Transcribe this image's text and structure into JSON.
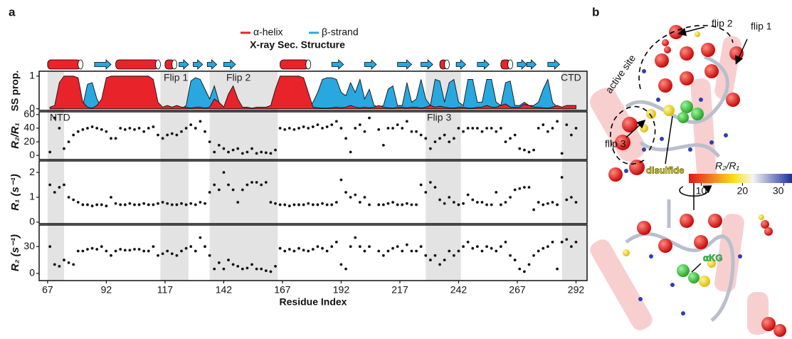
{
  "panel_labels": [
    "a",
    "b"
  ],
  "chart_data": [
    {
      "type": "sec_structure",
      "title": "X-ray Sec. Structure",
      "series": [
        {
          "name": "α-helix",
          "color": "#e8242a"
        },
        {
          "name": "β-strand",
          "color": "#29a8e0"
        }
      ],
      "elements": [
        {
          "kind": "helix",
          "start": 67,
          "end": 81
        },
        {
          "kind": "strand",
          "start": 87,
          "end": 94
        },
        {
          "kind": "helix",
          "start": 96,
          "end": 114
        },
        {
          "kind": "helix",
          "start": 117,
          "end": 121
        },
        {
          "kind": "strand",
          "start": 123,
          "end": 127
        },
        {
          "kind": "strand",
          "start": 129,
          "end": 133
        },
        {
          "kind": "strand",
          "start": 135,
          "end": 139
        },
        {
          "kind": "strand",
          "start": 142,
          "end": 147
        },
        {
          "kind": "helix",
          "start": 166,
          "end": 178
        },
        {
          "kind": "strand",
          "start": 188,
          "end": 193
        },
        {
          "kind": "strand",
          "start": 202,
          "end": 207
        },
        {
          "kind": "strand",
          "start": 216,
          "end": 222
        },
        {
          "kind": "strand",
          "start": 226,
          "end": 231
        },
        {
          "kind": "helix",
          "start": 234,
          "end": 237
        },
        {
          "kind": "strand",
          "start": 241,
          "end": 245
        },
        {
          "kind": "strand",
          "start": 250,
          "end": 255
        },
        {
          "kind": "helix",
          "start": 260,
          "end": 264
        },
        {
          "kind": "strand",
          "start": 267,
          "end": 271
        },
        {
          "kind": "strand",
          "start": 271,
          "end": 275
        },
        {
          "kind": "strand",
          "start": 280,
          "end": 285
        }
      ]
    },
    {
      "type": "area",
      "ylabel": "SS prop.",
      "ylim": [
        -0.05,
        1.15
      ],
      "yticks": [
        0,
        1
      ],
      "annotations": [
        "Flip 1",
        "Flip 2",
        "CTD"
      ],
      "x": [
        68,
        70,
        72,
        74,
        76,
        78,
        80,
        82,
        84,
        86,
        88,
        90,
        92,
        94,
        96,
        98,
        100,
        102,
        104,
        106,
        108,
        110,
        112,
        114,
        116,
        118,
        120,
        122,
        124,
        126,
        128,
        130,
        132,
        134,
        136,
        138,
        140,
        142,
        144,
        146,
        148,
        150,
        152,
        154,
        156,
        158,
        160,
        162,
        164,
        166,
        168,
        170,
        172,
        174,
        176,
        178,
        180,
        182,
        184,
        186,
        188,
        190,
        192,
        194,
        196,
        198,
        200,
        202,
        204,
        206,
        208,
        210,
        212,
        214,
        216,
        218,
        220,
        222,
        224,
        226,
        228,
        230,
        232,
        234,
        236,
        238,
        240,
        242,
        244,
        246,
        248,
        250,
        252,
        254,
        256,
        258,
        260,
        262,
        264,
        266,
        268,
        270,
        272,
        274,
        276,
        278,
        280,
        282,
        284,
        286,
        288,
        290,
        292
      ],
      "series": [
        {
          "color": "#29a8e0",
          "values": [
            0,
            0,
            0,
            0,
            0,
            0,
            0,
            0.1,
            0.75,
            0.8,
            0.3,
            0.05,
            0,
            0,
            0,
            0,
            0,
            0,
            0,
            0,
            0,
            0,
            0,
            0,
            0,
            0,
            0,
            0,
            0,
            0.1,
            0.85,
            0.95,
            0.9,
            0.6,
            0.3,
            0.7,
            0.2,
            0.05,
            0,
            0,
            0.05,
            0,
            0,
            0,
            0,
            0,
            0,
            0,
            0,
            0,
            0,
            0,
            0,
            0,
            0,
            0.05,
            0.2,
            0.5,
            0.9,
            0.95,
            0.95,
            0.9,
            0.5,
            0.4,
            0.8,
            0.5,
            0.9,
            0.3,
            0.6,
            0.1,
            0.05,
            0.1,
            0.6,
            0.7,
            0.1,
            0.1,
            0.8,
            0.2,
            0.3,
            0.9,
            0.3,
            0.1,
            0.9,
            0.85,
            0.2,
            0.8,
            0.9,
            0.2,
            0.1,
            0.9,
            0.9,
            0.2,
            0.2,
            0.9,
            0.9,
            0.2,
            0.1,
            0.8,
            0.85,
            0.1,
            0.1,
            0.2,
            0.1,
            0.1,
            0.2,
            0.6,
            0.9,
            0.2,
            0.05,
            0,
            0.02,
            0.02,
            0
          ]
        },
        {
          "color": "#e8242a",
          "values": [
            0.05,
            0.1,
            0.8,
            1,
            1,
            1,
            0.95,
            0.2,
            0.05,
            0.02,
            0.1,
            0.3,
            0.95,
            1,
            1,
            1,
            1,
            1,
            1,
            1,
            1,
            1,
            0.9,
            0.2,
            0.05,
            0.1,
            0.05,
            0.1,
            0.05,
            0.05,
            0.02,
            0.05,
            0.05,
            0.02,
            0.05,
            0.3,
            0.2,
            0.05,
            0.45,
            0.7,
            0.3,
            0.05,
            0.05,
            0.02,
            0.05,
            0.05,
            0.05,
            0.1,
            0.6,
            1,
            1,
            1,
            1,
            1,
            0.95,
            0.5,
            0.05,
            0.03,
            0.02,
            0.02,
            0.03,
            0.05,
            0.03,
            0.05,
            0.1,
            0.05,
            0.03,
            0.05,
            0.03,
            0.05,
            0.1,
            0.05,
            0.03,
            0.02,
            0.05,
            0.05,
            0.03,
            0.05,
            0.05,
            0.02,
            0.05,
            0.1,
            0.05,
            0.08,
            0.05,
            0.03,
            0.02,
            0.05,
            0.05,
            0.02,
            0.02,
            0.05,
            0.05,
            0.1,
            0.05,
            0.05,
            0.1,
            0.15,
            0.05,
            0.05,
            0.05,
            0.15,
            0.1,
            0.05,
            0.05,
            0.03,
            0.02,
            0.05,
            0.1,
            0.05,
            0.1,
            0.1,
            0.1
          ]
        }
      ]
    },
    {
      "type": "scatter",
      "ylabel": "R₂/R₁",
      "ylim": [
        -6,
        64
      ],
      "yticks": [
        0,
        20,
        40,
        60
      ],
      "annotations": [
        "NTD",
        "Flip 3"
      ],
      "x": [
        68,
        70,
        72,
        74,
        76,
        78,
        80,
        82,
        84,
        86,
        88,
        90,
        92,
        94,
        96,
        98,
        100,
        102,
        104,
        106,
        108,
        110,
        112,
        114,
        116,
        118,
        120,
        122,
        124,
        126,
        128,
        130,
        132,
        134,
        136,
        138,
        140,
        142,
        144,
        146,
        148,
        150,
        152,
        154,
        156,
        158,
        160,
        162,
        164,
        166,
        168,
        170,
        172,
        174,
        176,
        178,
        180,
        182,
        184,
        186,
        188,
        190,
        192,
        194,
        196,
        198,
        200,
        202,
        204,
        206,
        208,
        210,
        212,
        214,
        216,
        218,
        220,
        222,
        224,
        226,
        228,
        230,
        232,
        234,
        236,
        238,
        240,
        242,
        244,
        246,
        248,
        250,
        252,
        254,
        256,
        258,
        260,
        262,
        264,
        266,
        268,
        270,
        272,
        274,
        276,
        278,
        280,
        282,
        284,
        286,
        288,
        290,
        292
      ],
      "values": [
        5,
        55,
        40,
        10,
        20,
        30,
        35,
        38,
        40,
        42,
        40,
        38,
        35,
        25,
        25,
        40,
        38,
        40,
        38,
        40,
        35,
        40,
        42,
        30,
        25,
        30,
        32,
        30,
        35,
        40,
        45,
        40,
        50,
        35,
        20,
        5,
        15,
        10,
        5,
        8,
        10,
        3,
        5,
        10,
        3,
        5,
        4,
        3,
        8,
        40,
        38,
        40,
        38,
        40,
        42,
        40,
        42,
        45,
        40,
        42,
        45,
        50,
        40,
        25,
        5,
        40,
        45,
        35,
        55,
        null,
        38,
        15,
        40,
        40,
        45,
        40,
        50,
        35,
        35,
        30,
        25,
        10,
        20,
        25,
        30,
        20,
        25,
        40,
        35,
        40,
        40,
        40,
        35,
        40,
        40,
        35,
        40,
        20,
        25,
        30,
        10,
        8,
        5,
        8,
        40,
        45,
        35,
        40,
        50,
        3,
        45,
        30,
        40
      ]
    },
    {
      "type": "scatter",
      "ylabel": "R₁ (s⁻¹)",
      "ylim": [
        -0.06,
        2.46
      ],
      "yticks": [
        0,
        1,
        2
      ],
      "x": [
        68,
        70,
        72,
        74,
        76,
        78,
        80,
        82,
        84,
        86,
        88,
        90,
        92,
        94,
        96,
        98,
        100,
        102,
        104,
        106,
        108,
        110,
        112,
        114,
        116,
        118,
        120,
        122,
        124,
        126,
        128,
        130,
        132,
        134,
        136,
        138,
        140,
        142,
        144,
        146,
        148,
        150,
        152,
        154,
        156,
        158,
        160,
        162,
        164,
        166,
        168,
        170,
        172,
        174,
        176,
        178,
        180,
        182,
        184,
        186,
        188,
        190,
        192,
        194,
        196,
        198,
        200,
        202,
        204,
        206,
        208,
        210,
        212,
        214,
        216,
        218,
        220,
        222,
        224,
        226,
        228,
        230,
        232,
        234,
        236,
        238,
        240,
        242,
        244,
        246,
        248,
        250,
        252,
        254,
        256,
        258,
        260,
        262,
        264,
        266,
        268,
        270,
        272,
        274,
        276,
        278,
        280,
        282,
        284,
        286,
        288,
        290,
        292
      ],
      "values": [
        1.5,
        1.2,
        1.4,
        1.5,
        1.0,
        0.9,
        0.8,
        0.7,
        0.7,
        0.65,
        0.7,
        0.7,
        0.65,
        1.0,
        0.75,
        0.7,
        0.7,
        0.75,
        0.7,
        0.7,
        0.75,
        0.7,
        0.7,
        0.75,
        0.8,
        0.75,
        0.7,
        0.7,
        0.75,
        0.7,
        0.75,
        0.7,
        0.8,
        0.75,
        1.2,
        1.5,
        1.3,
        2.0,
        1.5,
        1.3,
        0.8,
        1.3,
        1.5,
        1.6,
        1.6,
        1.5,
        1.6,
        0.8,
        0.75,
        0.7,
        0.7,
        0.65,
        0.7,
        0.7,
        0.7,
        0.75,
        0.7,
        0.7,
        0.75,
        0.7,
        0.7,
        0.8,
        1.7,
        1.2,
        1.0,
        1.1,
        0.8,
        1.0,
        0.7,
        null,
        0.7,
        0.7,
        0.75,
        0.8,
        0.7,
        0.7,
        0.75,
        0.7,
        0.7,
        1.5,
        1.2,
        1.6,
        1.4,
        0.9,
        0.75,
        1.0,
        0.8,
        0.7,
        0.75,
        1.1,
        0.9,
        0.8,
        0.8,
        0.7,
        0.7,
        1.2,
        0.7,
        0.8,
        1.0,
        1.3,
        1.35,
        1.4,
        1.4,
        0.5,
        0.8,
        0.7,
        0.75,
        0.8,
        0.7,
        1.8,
        0.9,
        1.0,
        0.8
      ]
    },
    {
      "type": "scatter",
      "ylabel": "R₂ (s⁻¹)",
      "ylim": [
        -8,
        54
      ],
      "yticks": [
        0,
        30
      ],
      "xlabel": "Residue Index",
      "xlim": [
        63.4,
        296.7
      ],
      "xticks": [
        67,
        92,
        117,
        142,
        167,
        192,
        217,
        242,
        267,
        292
      ],
      "x": [
        68,
        70,
        72,
        74,
        76,
        78,
        80,
        82,
        84,
        86,
        88,
        90,
        92,
        94,
        96,
        98,
        100,
        102,
        104,
        106,
        108,
        110,
        112,
        114,
        116,
        118,
        120,
        122,
        124,
        126,
        128,
        130,
        132,
        134,
        136,
        138,
        140,
        142,
        144,
        146,
        148,
        150,
        152,
        154,
        156,
        158,
        160,
        162,
        164,
        166,
        168,
        170,
        172,
        174,
        176,
        178,
        180,
        182,
        184,
        186,
        188,
        190,
        192,
        194,
        196,
        198,
        200,
        202,
        204,
        206,
        208,
        210,
        212,
        214,
        216,
        218,
        220,
        222,
        224,
        226,
        228,
        230,
        232,
        234,
        236,
        238,
        240,
        242,
        244,
        246,
        248,
        250,
        252,
        254,
        256,
        258,
        260,
        262,
        264,
        266,
        268,
        270,
        272,
        274,
        276,
        278,
        280,
        282,
        284,
        286,
        288,
        290,
        292
      ],
      "values": [
        30,
        10,
        8,
        15,
        12,
        10,
        25,
        25,
        27,
        28,
        27,
        30,
        25,
        20,
        25,
        27,
        26,
        26,
        27,
        27,
        25,
        25,
        30,
        20,
        22,
        25,
        22,
        20,
        25,
        28,
        30,
        25,
        40,
        30,
        20,
        5,
        12,
        5,
        15,
        10,
        8,
        5,
        6,
        10,
        5,
        5,
        3,
        2,
        8,
        28,
        25,
        27,
        25,
        28,
        26,
        25,
        27,
        30,
        28,
        25,
        30,
        35,
        10,
        5,
        30,
        40,
        30,
        25,
        30,
        null,
        25,
        20,
        25,
        28,
        30,
        25,
        32,
        25,
        25,
        30,
        20,
        15,
        20,
        10,
        15,
        25,
        20,
        25,
        30,
        35,
        28,
        30,
        25,
        30,
        28,
        25,
        30,
        35,
        20,
        15,
        5,
        2,
        10,
        20,
        25,
        28,
        30,
        35,
        5,
        35,
        38,
        30,
        35
      ]
    }
  ],
  "shaded_regions": [
    [
      67,
      74
    ],
    [
      115,
      127
    ],
    [
      136,
      165
    ],
    [
      228,
      243
    ],
    [
      286,
      297
    ]
  ],
  "structure": {
    "labels": [
      "flip 2",
      "flip 1",
      "active site",
      "flip 3",
      "disulfide",
      "αKG"
    ],
    "colorbar": {
      "label": "R₂/R₁",
      "lim": [
        7,
        32
      ],
      "ticks": [
        10,
        20,
        30
      ]
    }
  }
}
